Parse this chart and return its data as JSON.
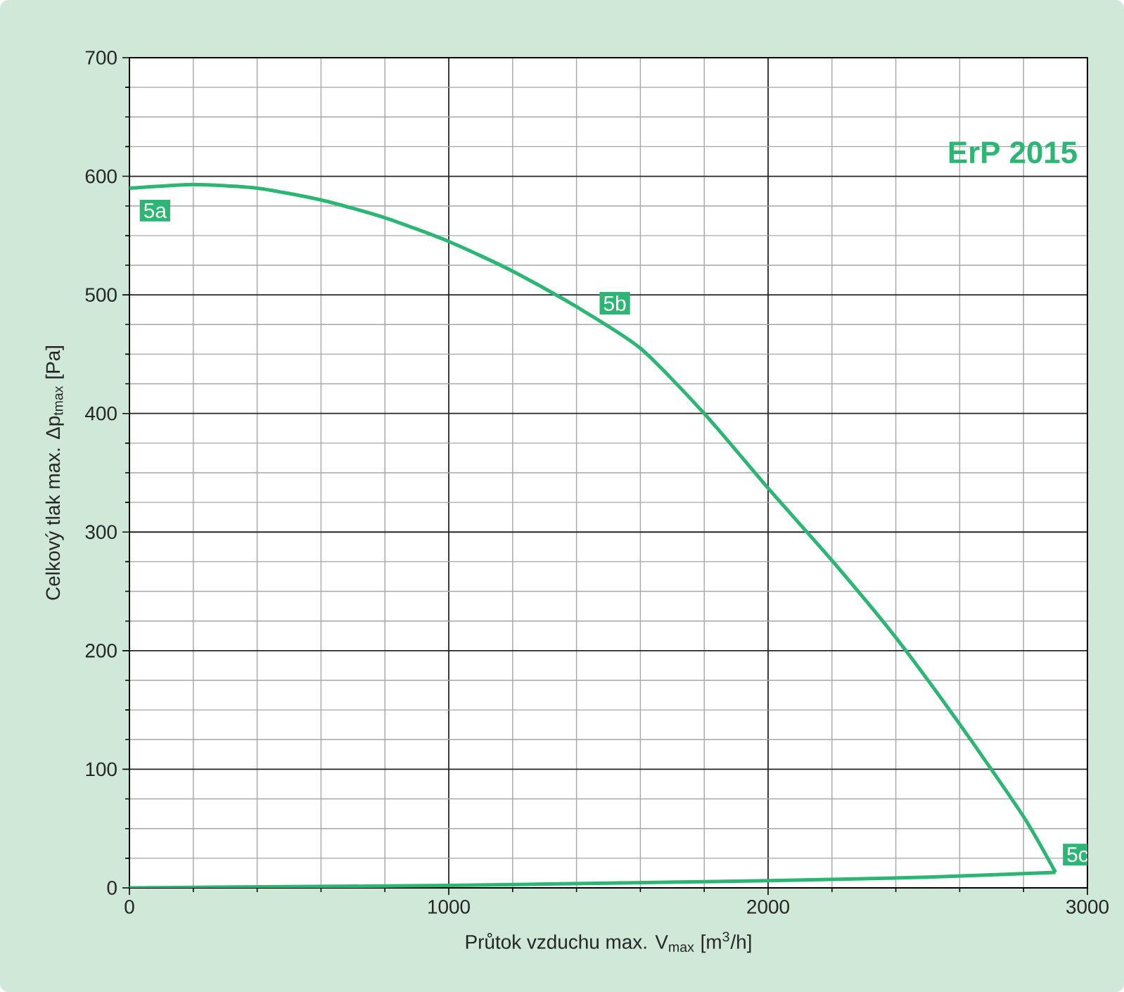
{
  "chart_data": {
    "type": "line",
    "xlabel": "Průtok vzduchu max. V$_{max}$     [m$^{3}$/h]",
    "ylabel": "Celkový tlak max.     Δp$_{tmax}$     [Pa]",
    "series": [
      {
        "color": "#2bb673",
        "x": [
          0,
          200,
          400,
          600,
          800,
          1000,
          1200,
          1400,
          1600,
          1800,
          2000,
          2200,
          2400,
          2600,
          2800,
          2900
        ],
        "values": [
          590,
          593,
          590,
          580,
          565,
          545,
          520,
          490,
          455,
          400,
          337,
          276,
          211,
          138,
          60,
          13
        ]
      },
      {
        "color": "#2bb673",
        "x": [
          0,
          500,
          1000,
          1500,
          2000,
          2500,
          2900
        ],
        "values": [
          0,
          1,
          2,
          4,
          6,
          9,
          13
        ]
      }
    ],
    "xlim": [
      0,
      3000
    ],
    "ylim": [
      0,
      700
    ],
    "xticks": [
      0,
      1000,
      2000,
      3000
    ],
    "yticks": [
      0,
      100,
      200,
      300,
      400,
      500,
      600,
      700
    ],
    "grid": true,
    "marker": "none",
    "line_style": "solid",
    "annotations": [
      "ErP 2015",
      {
        "text": "5a",
        "x": 80,
        "y": 571
      },
      {
        "text": "5b",
        "x": 1520,
        "y": 493
      },
      {
        "text": "5c",
        "x": 2969,
        "y": 28
      }
    ]
  }
}
